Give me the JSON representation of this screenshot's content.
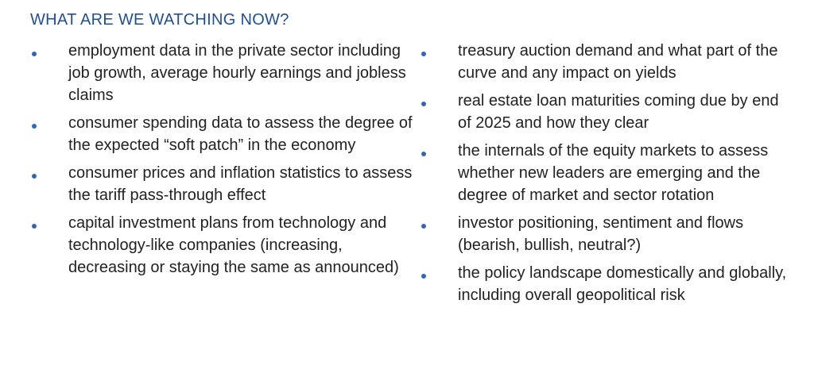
{
  "heading": "WHAT ARE WE WATCHING NOW?",
  "colors": {
    "heading": "#1f4f9a",
    "bullet": "#2f67b3",
    "text": "#222222"
  },
  "left_column": {
    "items": [
      {
        "text": "employment data in the private sector including job growth, average hourly earnings and jobless claims"
      },
      {
        "text": "consumer spending data to assess the degree of the expected “soft patch” in the economy"
      },
      {
        "text": "consumer prices and inflation statistics to assess the tariff pass-through effect"
      },
      {
        "text": "capital investment plans from technology and technology-like companies (increasing, decreasing or staying the same as announced)"
      }
    ]
  },
  "right_column": {
    "items": [
      {
        "text": "treasury auction demand and what part of the curve and any impact on yields"
      },
      {
        "text": "real estate loan maturities coming due by end of 2025 and how they clear"
      },
      {
        "text": "the internals of the equity markets to assess whether new leaders are emerging and the degree of market and sector rotation"
      },
      {
        "text": "investor positioning, sentiment and flows (bearish, bullish, neutral?)"
      },
      {
        "text": "the policy landscape domestically and globally, including overall geopolitical risk"
      }
    ]
  }
}
